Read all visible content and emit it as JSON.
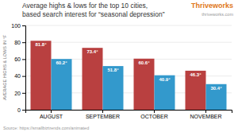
{
  "chart_data": {
    "type": "bar",
    "title": "Average highs & lows for the top 10 cities,",
    "subtitle": "based search interest for “seasonal depression”",
    "ylabel": "AVERAGE HIGHS & LOWS IN °F",
    "annotations": [
      {
        "text": "Thriveworks",
        "color": "#e07820"
      },
      {
        "text": "thriveworks.com"
      },
      {
        "text": "Source: https://smallbiztrends.com/animated"
      }
    ],
    "categories": [
      "AUGUST",
      "SEPTEMBER",
      "OCTOBER",
      "NOVEMBER"
    ],
    "series": [
      {
        "color": "#b94040",
        "values": [
          81.8,
          73.4,
          60.6,
          46.3
        ],
        "value_labels": [
          "81.8°",
          "73.4°",
          "60.6°",
          "46.3°"
        ]
      },
      {
        "color": "#3399cc",
        "values": [
          60.2,
          51.8,
          40.9,
          30.4
        ],
        "value_labels": [
          "60.2°",
          "51.8°",
          "40.9°",
          "30.4°"
        ]
      }
    ],
    "ylim": [
      0,
      100
    ],
    "yticks": [
      0,
      20,
      40,
      60,
      80,
      100
    ],
    "grid": true,
    "data_labels": true
  }
}
